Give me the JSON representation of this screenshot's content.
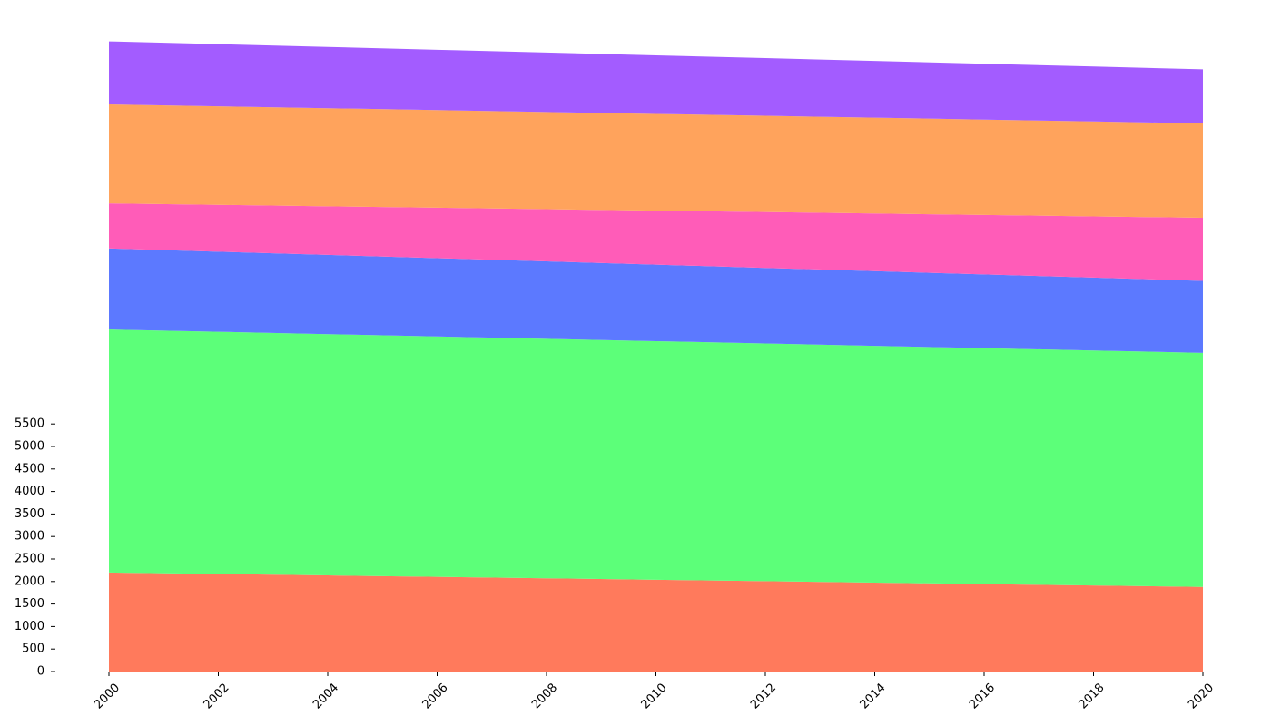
{
  "chart_data": {
    "type": "area",
    "stacked": true,
    "title": "",
    "xlabel": "",
    "ylabel": "",
    "x": [
      2000,
      2002,
      2004,
      2006,
      2008,
      2010,
      2012,
      2014,
      2016,
      2018,
      2020
    ],
    "x_ticks": [
      "2000",
      "2002",
      "2004",
      "2006",
      "2008",
      "2010",
      "2012",
      "2014",
      "2016",
      "2018",
      "2020"
    ],
    "y_ticks": [
      "0",
      "500",
      "1000",
      "1500",
      "2000",
      "2500",
      "3000",
      "3500",
      "4000",
      "4500",
      "5000",
      "5500"
    ],
    "xlim": [
      2000,
      2020
    ],
    "ylim": [
      0,
      14000
    ],
    "grid": false,
    "legend": "none",
    "series": [
      {
        "color": "#ff7a5c",
        "values": [
          2200,
          2168,
          2136,
          2104,
          2072,
          2040,
          2008,
          1976,
          1944,
          1912,
          1880
        ]
      },
      {
        "color": "#5cff79",
        "values": [
          5400,
          5380,
          5360,
          5340,
          5320,
          5300,
          5280,
          5260,
          5240,
          5220,
          5200
        ]
      },
      {
        "color": "#5c79ff",
        "values": [
          1800,
          1780,
          1760,
          1740,
          1720,
          1700,
          1680,
          1660,
          1640,
          1620,
          1600
        ]
      },
      {
        "color": "#ff5cb8",
        "values": [
          1000,
          1040,
          1080,
          1120,
          1160,
          1200,
          1240,
          1280,
          1320,
          1360,
          1400
        ]
      },
      {
        "color": "#ffa35c",
        "values": [
          2200,
          2190,
          2180,
          2170,
          2160,
          2150,
          2140,
          2130,
          2120,
          2110,
          2100
        ]
      },
      {
        "color": "#a35cff",
        "values": [
          1400,
          1380,
          1360,
          1340,
          1320,
          1300,
          1280,
          1260,
          1240,
          1220,
          1200
        ]
      }
    ]
  }
}
